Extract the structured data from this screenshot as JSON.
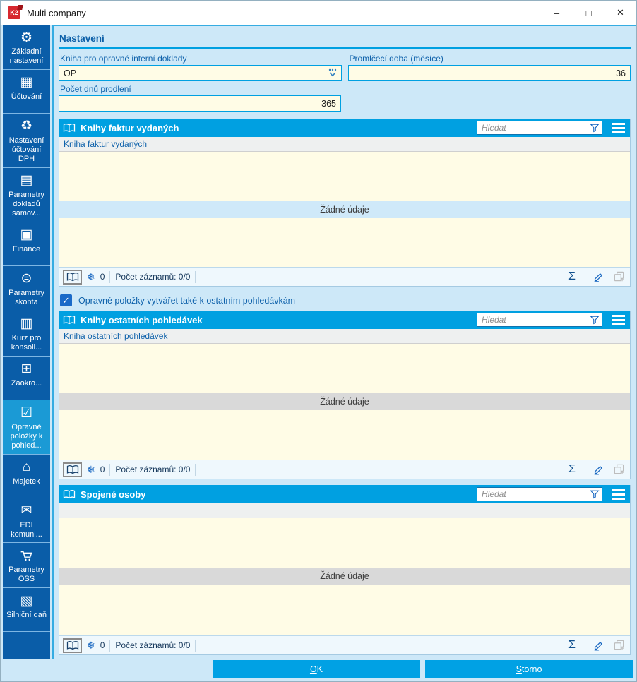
{
  "window": {
    "title": "Multi company",
    "logo_text": "K2",
    "controls": [
      "minimize-icon",
      "maximize-icon",
      "close-icon"
    ]
  },
  "sidebar": {
    "items": [
      {
        "name": "zakladni-nastaveni",
        "icon": "gear-icon",
        "label": "Základní nastavení",
        "selected": false
      },
      {
        "name": "uctovani",
        "icon": "cash-register-icon",
        "label": "Účtování",
        "selected": false
      },
      {
        "name": "nastaveni-uctovani-dph",
        "icon": "vat-accounting-icon",
        "label": "Nastavení účtování DPH",
        "selected": false
      },
      {
        "name": "parametry-dokladu-samov",
        "icon": "documents-icon",
        "label": "Parametry dokladů samov...",
        "selected": false
      },
      {
        "name": "finance",
        "icon": "cash-drawer-icon",
        "label": "Finance",
        "selected": false
      },
      {
        "name": "parametry-skonta",
        "icon": "coins-icon",
        "label": "Parametry skonta",
        "selected": false
      },
      {
        "name": "kurz-pro-konsolidaci",
        "icon": "chart-document-icon",
        "label": "Kurz pro konsoli...",
        "selected": false
      },
      {
        "name": "zaokrouhleni",
        "icon": "calculator-icon",
        "label": "Zaokro...",
        "selected": false
      },
      {
        "name": "opravne-polozky-k-pohledavkam",
        "icon": "corrective-items-icon",
        "label": "Opravné položky k pohled...",
        "selected": true
      },
      {
        "name": "majetek",
        "icon": "assets-icon",
        "label": "Majetek",
        "selected": false
      },
      {
        "name": "edi-komunikace",
        "icon": "edi-mail-icon",
        "label": "EDI komuni...",
        "selected": false
      },
      {
        "name": "parametry-oss",
        "icon": "cart-icon",
        "label": "Parametry OSS",
        "selected": false
      },
      {
        "name": "silnicni-dan",
        "icon": "road-tax-icon",
        "label": "Silniční daň",
        "selected": false
      }
    ]
  },
  "settings": {
    "section_title": "Nastavení",
    "book_field": {
      "label": "Kniha pro opravné interní doklady",
      "value": "OP"
    },
    "limitation_field": {
      "label": "Promlčecí doba (měsíce)",
      "value": "36"
    },
    "delay_field": {
      "label": "Počet dnů prodlení",
      "value": "365"
    },
    "checkbox": {
      "checked": true,
      "label": "Opravné položky vytvářet také k ostatním pohledávkám"
    }
  },
  "panels": [
    {
      "title": "Knihy faktur vydaných",
      "search_placeholder": "Hledat",
      "columns": [
        "Kniha faktur vydaných"
      ],
      "empty_text": "Žádné údaje",
      "empty_style": "blue",
      "freeze_count": "0",
      "records_label": "Počet záznamů: 0/0"
    },
    {
      "title": "Knihy ostatních pohledávek",
      "search_placeholder": "Hledat",
      "columns": [
        "Kniha ostatních pohledávek"
      ],
      "empty_text": "Žádné údaje",
      "empty_style": "gray",
      "freeze_count": "0",
      "records_label": "Počet záznamů: 0/0"
    },
    {
      "title": "Spojené osoby",
      "search_placeholder": "Hledat",
      "columns": [
        "",
        ""
      ],
      "empty_text": "Žádné údaje",
      "empty_style": "gray",
      "freeze_count": "0",
      "records_label": "Počet záznamů: 0/0"
    }
  ],
  "status_icons": [
    "book-icon",
    "snowflake-icon",
    "sigma-icon",
    "pencil-icon",
    "copy-plus-icon"
  ],
  "header_icons": [
    "book-icon",
    "funnel-icon",
    "hamburger-icon"
  ],
  "footer": {
    "ok_accel": "O",
    "ok_rest": "K",
    "storno_accel": "S",
    "storno_rest": "torno"
  },
  "colors": {
    "accent": "#00a0e1",
    "sidebar": "#0a5da8",
    "sidebar_selected": "#1b9ad5",
    "input_bg": "#fffce6",
    "label_blue": "#0f62ab",
    "logo_red": "#d7282f",
    "empty_band_blue": "#cfe9f9",
    "empty_band_gray": "#d9d9d9"
  }
}
